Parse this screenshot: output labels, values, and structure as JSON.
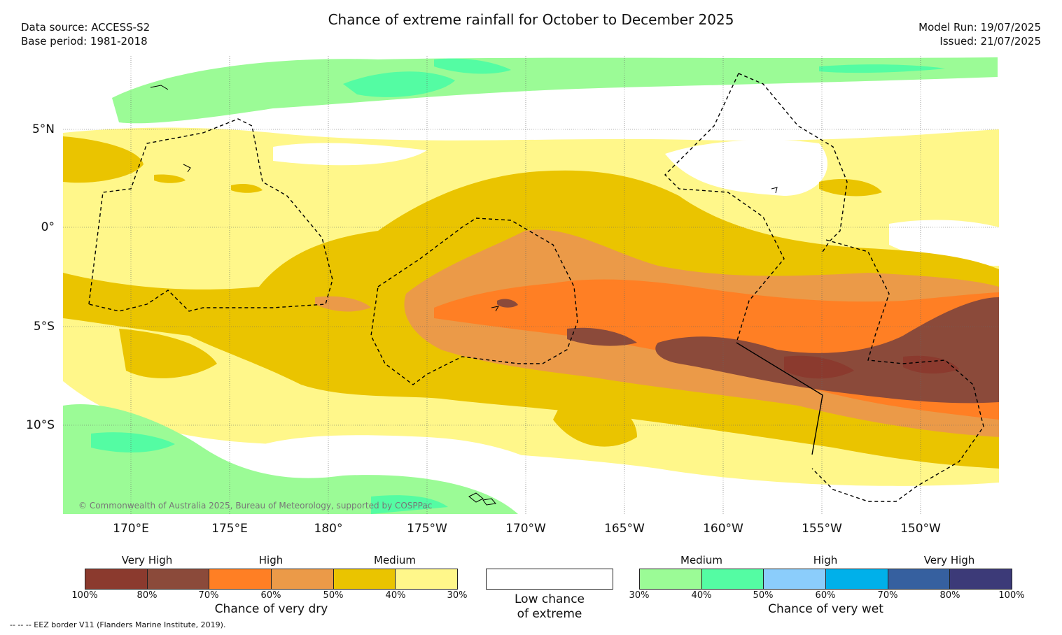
{
  "header": {
    "title": "Chance of extreme rainfall for October to December 2025",
    "data_source": "Data source: ACCESS-S2",
    "base_period": "Base period: 1981-2018",
    "model_run": "Model Run: 19/07/2025",
    "issued": "Issued: 21/07/2025"
  },
  "map": {
    "lat_labels": [
      "5°N",
      "0°",
      "5°S",
      "10°S"
    ],
    "lon_labels": [
      "170°E",
      "175°E",
      "180°",
      "175°W",
      "170°W",
      "165°W",
      "160°W",
      "155°W",
      "150°W"
    ],
    "copyright": "© Commonwealth of Australia 2025, Bureau of Meteorology, supported by COSPPac",
    "colors": {
      "dry_100_80": "#8b3a2e",
      "dry_80_70": "#8b4a3a",
      "dry_70_60": "#ff7f24",
      "dry_60_50": "#eb9a48",
      "dry_50_40": "#eac400",
      "dry_40_30": "#fff78a",
      "wet_30_40": "#9bfb96",
      "wet_40_50": "#54fca3",
      "wet_50_60": "#8bcdfb",
      "wet_60_70": "#00b0ea",
      "wet_70_80": "#36609f",
      "wet_80_100": "#3c3a78"
    }
  },
  "legend": {
    "dry": {
      "categories": [
        "Very High",
        "High",
        "Medium"
      ],
      "ticks": [
        "100%",
        "80%",
        "70%",
        "60%",
        "50%",
        "40%",
        "30%"
      ],
      "title": "Chance of very dry",
      "colors": [
        "#8b3a2e",
        "#8b4a3a",
        "#ff7f24",
        "#eb9a48",
        "#eac400",
        "#fff78a"
      ]
    },
    "low": {
      "line1": "Low chance",
      "line2": "of extreme"
    },
    "wet": {
      "categories": [
        "Medium",
        "High",
        "Very High"
      ],
      "ticks": [
        "30%",
        "40%",
        "50%",
        "60%",
        "70%",
        "80%",
        "100%"
      ],
      "title": "Chance of very wet",
      "colors": [
        "#9bfb96",
        "#54fca3",
        "#8bcdfb",
        "#00b0ea",
        "#36609f",
        "#3c3a78"
      ]
    }
  },
  "footnote": "--  --  -- EEZ border V11 (Flanders Marine Institute, 2019)."
}
